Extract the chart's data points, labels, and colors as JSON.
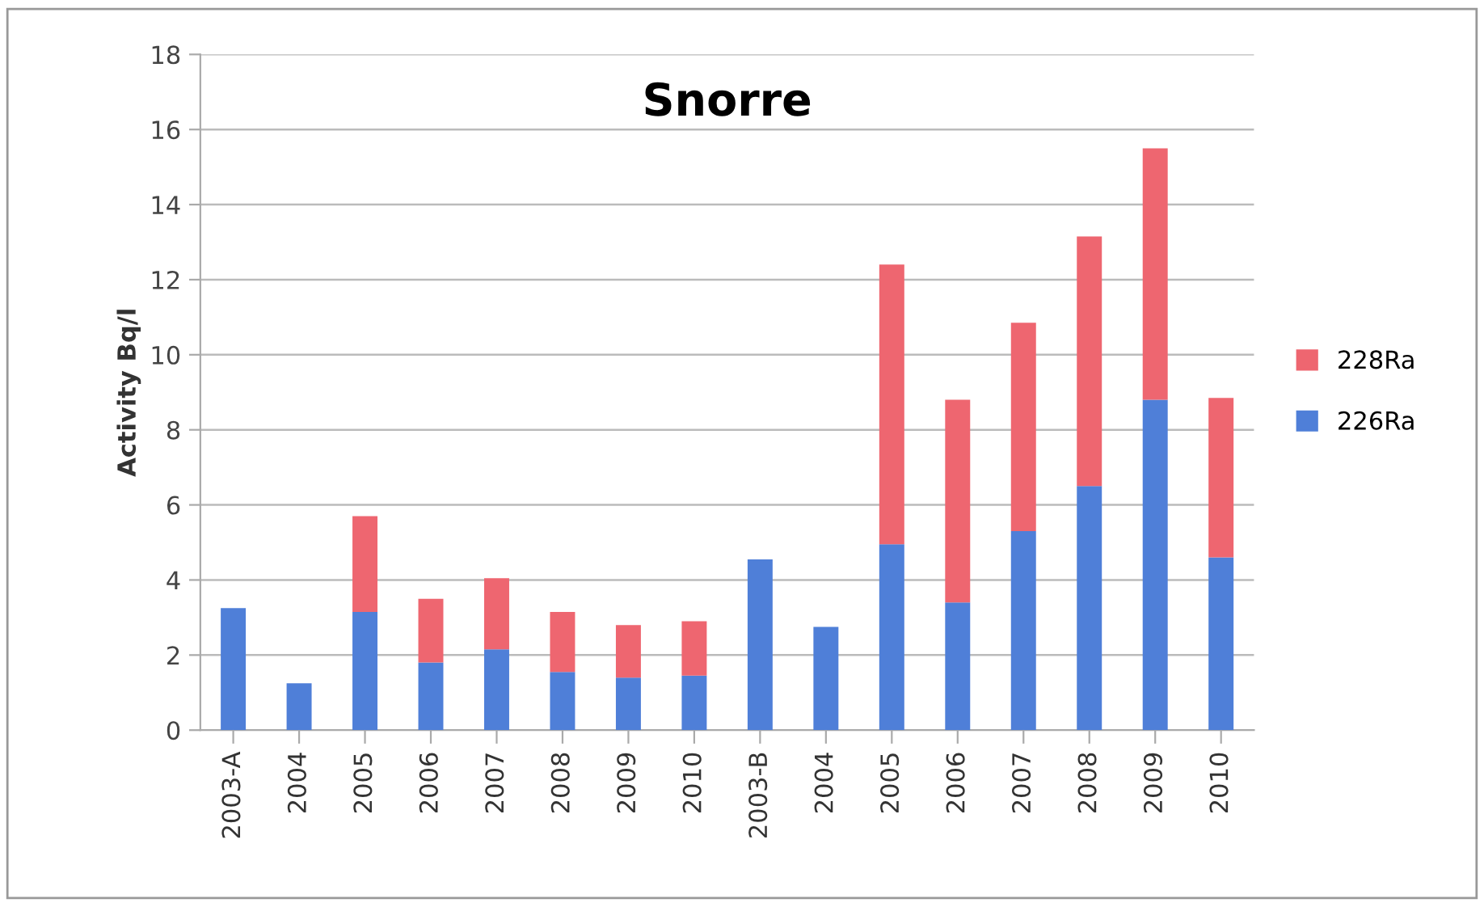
{
  "chart_data": {
    "type": "bar",
    "title": "Snorre",
    "ylabel": "Activity Bq/l",
    "categories": [
      "2003-A",
      "2004",
      "2005",
      "2006",
      "2007",
      "2008",
      "2009",
      "2010",
      "2003-B",
      "2004",
      "2005",
      "2006",
      "2007",
      "2008",
      "2009",
      "2010"
    ],
    "stacked": true,
    "series": [
      {
        "name": "226Ra",
        "color": "#4f7fd8",
        "values": [
          3.25,
          1.25,
          3.15,
          1.8,
          2.15,
          1.55,
          1.4,
          1.45,
          4.55,
          2.75,
          4.95,
          3.4,
          5.3,
          6.5,
          8.8,
          4.6
        ]
      },
      {
        "name": "228Ra",
        "color": "#ee6670",
        "values": [
          null,
          null,
          2.55,
          1.7,
          1.9,
          1.6,
          1.4,
          1.45,
          null,
          null,
          7.45,
          5.4,
          5.55,
          6.65,
          6.7,
          4.25
        ]
      }
    ],
    "ylim": [
      0,
      18
    ],
    "yticks": [
      0,
      2,
      4,
      6,
      8,
      10,
      12,
      14,
      16,
      18
    ],
    "grid": "y",
    "legend": "right"
  }
}
